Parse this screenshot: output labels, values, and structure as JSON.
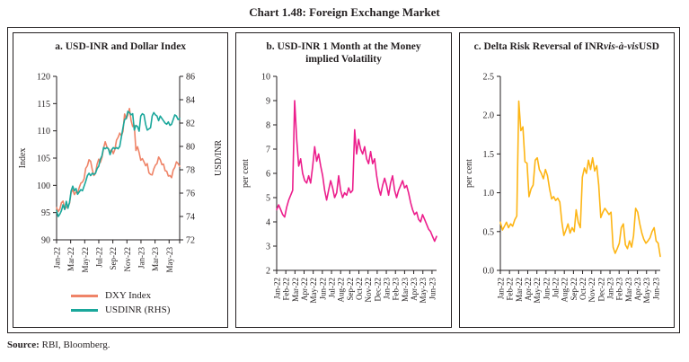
{
  "figure": {
    "title": "Chart 1.48: Foreign Exchange Market"
  },
  "source": {
    "label": "Source:",
    "text": " RBI, Bloomberg."
  },
  "panels": [
    {
      "title": "a. USD-INR and Dollar Index"
    },
    {
      "title": "b. USD-INR 1 Month at the Money implied Volatility"
    },
    {
      "title_prefix": "c. Delta Risk Reversal of INR ",
      "title_italic": "vis-à-vis",
      "title_suffix": " USD"
    }
  ],
  "legend": {
    "items": [
      {
        "label": "DXY Index",
        "color": "#EF8468"
      },
      {
        "label": "USDINR (RHS)",
        "color": "#1AA79B"
      }
    ]
  },
  "chart_data": [
    {
      "type": "line",
      "title": "a. USD-INR and Dollar Index",
      "categories": [
        "Jan-22",
        "Feb-22",
        "Mar-22",
        "Apr-22",
        "May-22",
        "Jun-22",
        "Jul-22",
        "Aug-22",
        "Sep-22",
        "Oct-22",
        "Nov-22",
        "Dec-22",
        "Jan-23",
        "Feb-23",
        "Mar-23",
        "Apr-23",
        "May-23",
        "Jun-23"
      ],
      "xtick_step": 2,
      "total_months": 17.5,
      "end_tick": true,
      "left": {
        "label": "Index",
        "min": 90,
        "max": 120,
        "step": 5
      },
      "right": {
        "label": "USD/INR",
        "min": 72,
        "max": 86,
        "step": 2
      },
      "series": [
        {
          "name": "DXY Index",
          "axis": "left",
          "color": "#EF8468",
          "values": [
            95.9,
            95.2,
            95.6,
            96.8,
            97.1,
            95.6,
            96.0,
            96.2,
            96.7,
            98.7,
            99.2,
            98.3,
            98.8,
            98.5,
            99.6,
            100.4,
            100.6,
            101.2,
            103.1,
            103.6,
            104.7,
            104.4,
            102.9,
            101.8,
            102.2,
            103.9,
            104.8,
            104.2,
            105.1,
            106.8,
            108.0,
            107.1,
            106.7,
            106.1,
            106.6,
            105.8,
            106.6,
            108.3,
            108.8,
            109.6,
            109.1,
            109.9,
            113.1,
            112.2,
            112.9,
            114.1,
            111.9,
            110.8,
            111.0,
            106.4,
            107.1,
            106.0,
            104.6,
            104.9,
            104.3,
            103.6,
            104.0,
            102.3,
            102.0,
            101.9,
            103.0,
            103.7,
            104.0,
            105.2,
            104.7,
            103.8,
            103.9,
            102.7,
            102.6,
            101.7,
            101.8,
            101.4,
            102.8,
            103.3,
            104.3,
            104.0,
            103.5
          ]
        },
        {
          "name": "USDINR (RHS)",
          "axis": "right",
          "color": "#1AA79B",
          "values": [
            74.5,
            74.0,
            74.2,
            74.5,
            75.0,
            74.6,
            75.3,
            74.7,
            75.2,
            76.2,
            76.6,
            76.2,
            76.4,
            75.9,
            76.1,
            76.3,
            76.2,
            76.6,
            77.0,
            77.5,
            77.7,
            77.5,
            77.7,
            77.6,
            77.7,
            78.1,
            78.3,
            78.9,
            79.2,
            79.9,
            79.8,
            79.9,
            79.8,
            79.3,
            79.7,
            79.9,
            79.8,
            79.9,
            79.8,
            80.0,
            80.8,
            81.6,
            82.3,
            82.4,
            83.0,
            82.9,
            82.7,
            82.8,
            81.4,
            81.8,
            81.7,
            81.3,
            82.6,
            82.8,
            82.7,
            81.9,
            81.4,
            81.5,
            81.6,
            82.6,
            82.9,
            82.7,
            82.6,
            82.2,
            82.6,
            82.4,
            82.2,
            82.0,
            81.9,
            82.1,
            81.8,
            81.9,
            82.3,
            82.7,
            82.6,
            82.3,
            82.4
          ]
        }
      ]
    },
    {
      "type": "line",
      "title": "b. USD-INR 1 Month at the Money implied Volatility",
      "categories": [
        "Jan-22",
        "Feb-22",
        "Mar-22",
        "Apr-22",
        "May-22",
        "Jun-22",
        "Jul-22",
        "Aug-22",
        "Sep-22",
        "Oct-22",
        "Nov-22",
        "Dec-22",
        "Jan-23",
        "Feb-23",
        "Mar-23",
        "Apr-23",
        "May-23",
        "Jun-23"
      ],
      "xtick_step": 1,
      "total_months": 17.5,
      "end_tick": false,
      "left": {
        "label": "per cent",
        "min": 2,
        "max": 10,
        "step": 1
      },
      "series": [
        {
          "name": "USD-INR 1M ATM implied volatility",
          "axis": "left",
          "color": "#EC1E8C",
          "values": [
            4.5,
            4.7,
            4.5,
            4.3,
            4.2,
            4.6,
            4.9,
            5.1,
            5.3,
            9.0,
            7.4,
            6.3,
            6.6,
            6.0,
            5.7,
            5.6,
            5.9,
            5.6,
            6.3,
            7.1,
            6.5,
            6.8,
            6.3,
            5.9,
            5.3,
            4.9,
            5.3,
            5.7,
            5.4,
            5.0,
            5.2,
            5.9,
            5.3,
            5.0,
            5.2,
            5.1,
            5.4,
            5.2,
            5.3,
            7.8,
            6.8,
            7.4,
            7.0,
            6.8,
            7.1,
            6.6,
            6.4,
            6.9,
            6.4,
            6.6,
            5.9,
            5.4,
            5.1,
            5.5,
            5.8,
            5.5,
            5.1,
            5.6,
            5.9,
            5.3,
            5.0,
            5.3,
            5.5,
            5.7,
            5.4,
            5.5,
            5.2,
            4.8,
            4.5,
            4.3,
            4.4,
            4.1,
            4.0,
            4.3,
            4.1,
            3.9,
            3.7,
            3.6,
            3.4,
            3.2,
            3.4
          ]
        }
      ]
    },
    {
      "type": "line",
      "title": "c. Delta Risk Reversal of INR vis-à-vis USD",
      "categories": [
        "Jan-22",
        "Feb-22",
        "Mar-22",
        "Apr-22",
        "May-22",
        "Jun-22",
        "Jul-22",
        "Aug-22",
        "Sep-22",
        "Oct-22",
        "Nov-22",
        "Dec-22",
        "Jan-23",
        "Feb-23",
        "Mar-23",
        "Apr-23",
        "May-23",
        "Jun-23"
      ],
      "xtick_step": 1,
      "total_months": 17.5,
      "end_tick": false,
      "left": {
        "label": "per cent",
        "min": 0,
        "max": 2.5,
        "step": 0.5
      },
      "series": [
        {
          "name": "Delta risk reversal of INR vis-a-vis USD",
          "axis": "left",
          "color": "#FDB515",
          "values": [
            0.62,
            0.52,
            0.57,
            0.62,
            0.55,
            0.6,
            0.57,
            0.65,
            0.7,
            2.18,
            1.8,
            1.85,
            1.4,
            1.38,
            0.95,
            1.05,
            1.1,
            1.42,
            1.45,
            1.3,
            1.25,
            1.18,
            1.3,
            1.22,
            1.05,
            0.92,
            0.95,
            0.9,
            0.93,
            0.88,
            0.62,
            0.45,
            0.52,
            0.6,
            0.48,
            0.55,
            0.5,
            0.78,
            0.62,
            0.55,
            1.2,
            1.32,
            1.25,
            1.42,
            1.3,
            1.45,
            1.28,
            1.35,
            1.1,
            0.68,
            0.75,
            0.8,
            0.76,
            0.72,
            0.75,
            0.3,
            0.22,
            0.28,
            0.35,
            0.55,
            0.6,
            0.33,
            0.28,
            0.38,
            0.3,
            0.45,
            0.8,
            0.75,
            0.6,
            0.48,
            0.4,
            0.35,
            0.38,
            0.42,
            0.5,
            0.55,
            0.38,
            0.35,
            0.18
          ]
        }
      ]
    }
  ]
}
